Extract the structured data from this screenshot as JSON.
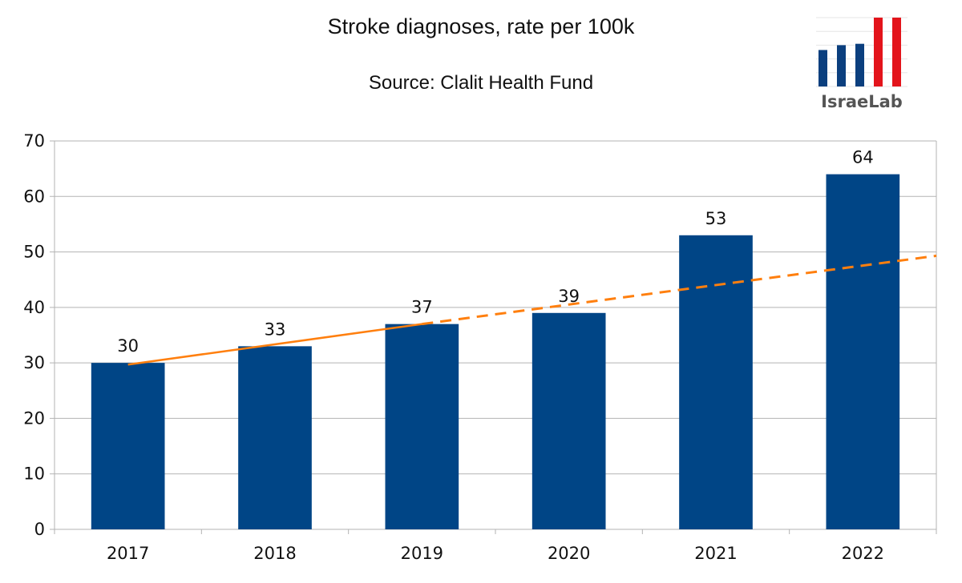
{
  "chart_data": {
    "type": "bar",
    "title": "Stroke diagnoses, rate per 100k",
    "subtitle": "Source: Clalit Health Fund",
    "categories": [
      "2017",
      "2018",
      "2019",
      "2020",
      "2021",
      "2022"
    ],
    "values": [
      30,
      33,
      37,
      39,
      53,
      64
    ],
    "data_labels": [
      "30",
      "33",
      "37",
      "39",
      "53",
      "64"
    ],
    "ylim": [
      0,
      70
    ],
    "y_ticks": [
      0,
      10,
      20,
      30,
      40,
      50,
      60,
      70
    ],
    "xlabel": "",
    "ylabel": "",
    "grid": true,
    "bar_color": "#004586",
    "trendline": {
      "color": "#ff7f0e",
      "solid_segment": {
        "x": [
          "2017",
          "2019"
        ],
        "y": [
          29.7,
          37.0
        ]
      },
      "dashed_segment": {
        "y_at_2019": 37.0,
        "y_at_right_edge": 49.3
      }
    }
  },
  "logo": {
    "text": "IsraeLab",
    "bar_values": [
      0.53,
      0.6,
      0.62,
      1.0,
      1.0
    ],
    "bar_colors": [
      "#0b3f7e",
      "#0b3f7e",
      "#0b3f7e",
      "#e3141b",
      "#e3141b"
    ]
  }
}
